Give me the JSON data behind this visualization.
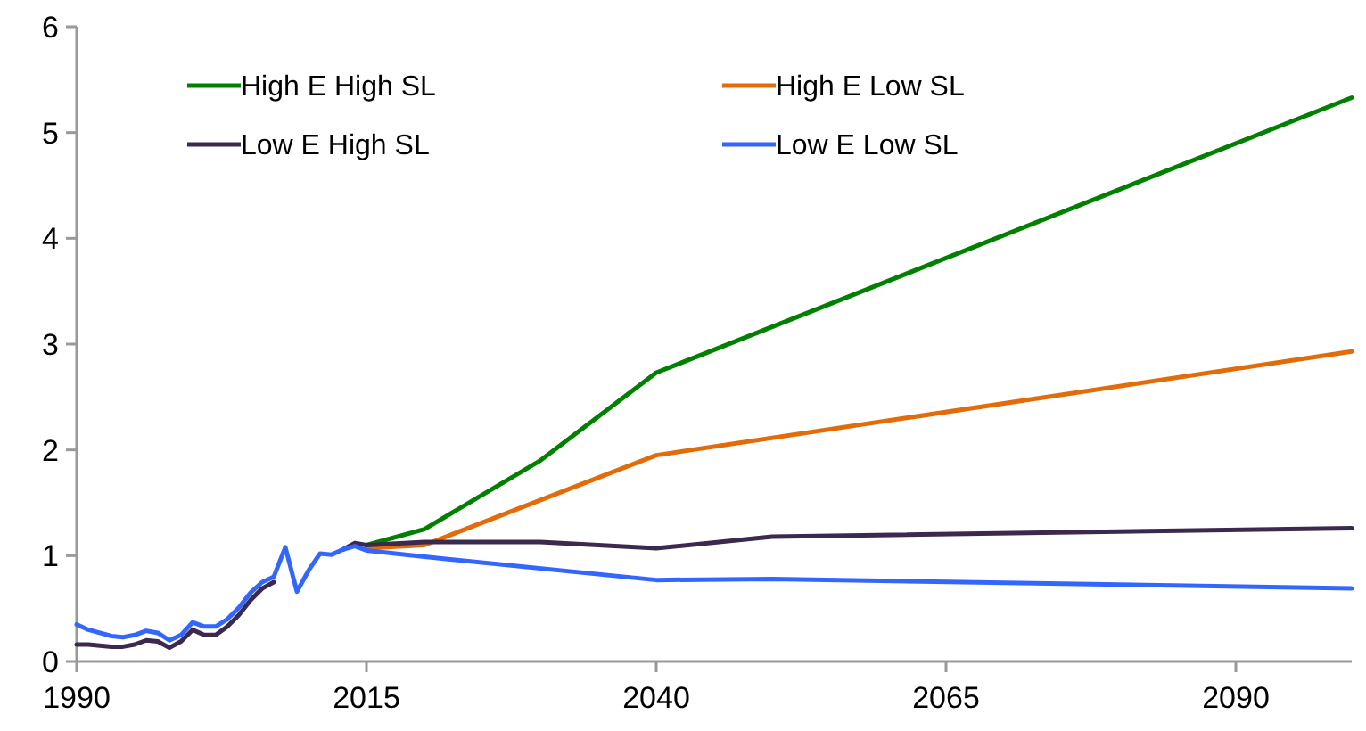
{
  "chart_data": {
    "type": "line",
    "xlim": [
      1990,
      2100
    ],
    "ylim": [
      0,
      6
    ],
    "xticks": [
      1990,
      2015,
      2040,
      2065,
      2090
    ],
    "yticks": [
      0,
      1,
      2,
      3,
      4,
      5,
      6
    ],
    "grid": false,
    "legend": "top",
    "marker": "none",
    "line_style": "solid",
    "series": [
      {
        "name": "High E High SL",
        "color": "#008000",
        "x": [
          2015,
          2020,
          2030,
          2040,
          2100
        ],
        "values": [
          1.1,
          1.25,
          1.9,
          2.73,
          5.33
        ]
      },
      {
        "name": "High E Low SL",
        "color": "#e36c0a",
        "x": [
          2015,
          2020,
          2040,
          2100
        ],
        "values": [
          1.07,
          1.1,
          1.95,
          2.93
        ]
      },
      {
        "name": "Low E High SL",
        "color": "#3b2a4e",
        "x": [
          1990,
          1991,
          1992,
          1993,
          1994,
          1995,
          1996,
          1997,
          1998,
          1999,
          2000,
          2001,
          2002,
          2003,
          2004,
          2005,
          2006,
          2007,
          2008,
          2009,
          2010,
          2011,
          2012,
          2013,
          2014,
          2015,
          2020,
          2030,
          2040,
          2050,
          2100
        ],
        "values": [
          0.16,
          0.16,
          0.15,
          0.14,
          0.14,
          0.16,
          0.2,
          0.19,
          0.13,
          0.19,
          0.3,
          0.25,
          0.25,
          0.33,
          0.44,
          0.58,
          0.69,
          0.75,
          null,
          null,
          null,
          null,
          null,
          1.06,
          1.12,
          1.1,
          1.13,
          1.13,
          1.07,
          1.18,
          1.26
        ]
      },
      {
        "name": "Low E Low SL",
        "color": "#3366ff",
        "x": [
          1990,
          1991,
          1992,
          1993,
          1994,
          1995,
          1996,
          1997,
          1998,
          1999,
          2000,
          2001,
          2002,
          2003,
          2004,
          2005,
          2006,
          2007,
          2008,
          2009,
          2010,
          2011,
          2012,
          2013,
          2014,
          2015,
          2020,
          2040,
          2050,
          2100
        ],
        "values": [
          0.35,
          0.3,
          0.27,
          0.24,
          0.23,
          0.25,
          0.29,
          0.27,
          0.2,
          0.25,
          0.37,
          0.33,
          0.33,
          0.4,
          0.51,
          0.65,
          0.75,
          0.8,
          1.08,
          0.66,
          0.86,
          1.02,
          1.01,
          1.06,
          1.09,
          1.05,
          0.99,
          0.77,
          0.78,
          0.69
        ]
      }
    ]
  }
}
